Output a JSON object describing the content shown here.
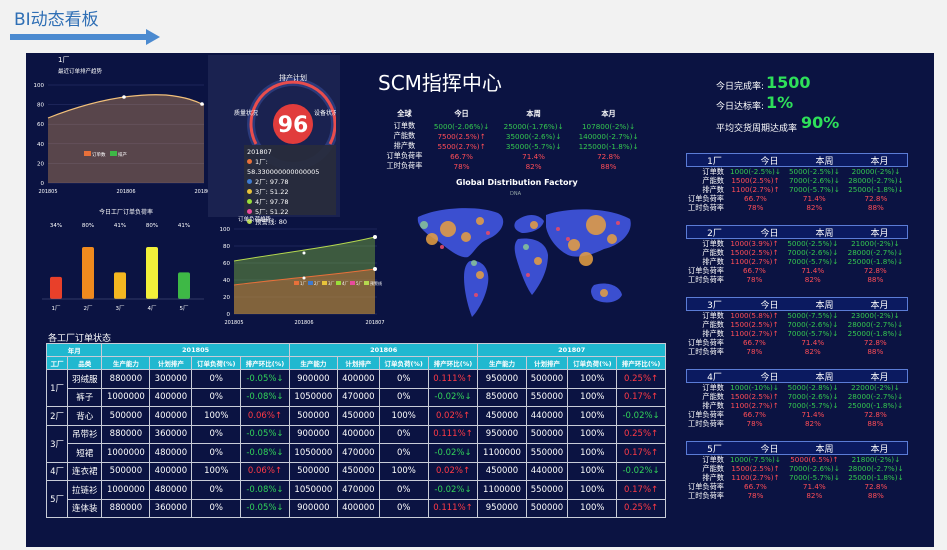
{
  "page": {
    "title": "BI动态看板"
  },
  "center": {
    "title": "SCM指挥中心",
    "map_title": "Global Distribution Factory",
    "map_sub": "DNA"
  },
  "kpi": {
    "done_label": "今日完成率:",
    "done_value": "1500",
    "reach_label": "今日达标率:",
    "reach_value": "1%",
    "avg_label": "平均交货周期达成率",
    "avg_value": "90%"
  },
  "trend": {
    "tag": "1厂",
    "title": "最近订单排产趋势",
    "y_ticks": [
      "100",
      "80",
      "60",
      "40",
      "20",
      "0"
    ],
    "x_ticks": [
      "201805",
      "201806",
      "201807"
    ],
    "legend": [
      "订单数",
      "排产"
    ]
  },
  "gauge": {
    "top": "排产计划",
    "left": "质量状况",
    "right": "设备状况",
    "value": "96",
    "tooltip_title": "201807",
    "tooltip": [
      "1厂: 58.330000000000005",
      "2厂: 97.78",
      "3厂: 51.22",
      "4厂: 97.78",
      "5厂: 51.22",
      "预警线: 80"
    ]
  },
  "bar": {
    "title": "今日工厂订单负荷率",
    "categories": [
      "1厂",
      "2厂",
      "3厂",
      "4厂",
      "5厂"
    ],
    "labels": [
      "34%",
      "80%",
      "41%",
      "80%",
      "41%"
    ],
    "colors": [
      "#e8402a",
      "#f08a1e",
      "#f5b720",
      "#f2f03a",
      "#3eb846"
    ]
  },
  "area": {
    "title": "订单负荷趋势",
    "y_ticks": [
      "100",
      "80",
      "60",
      "40",
      "20",
      "0"
    ],
    "x_ticks": [
      "201805",
      "201806",
      "201807"
    ],
    "legend": [
      "1厂",
      "2厂",
      "3厂",
      "4厂",
      "5厂",
      "预警线"
    ],
    "colors": [
      "#e8703a",
      "#3e7ad0",
      "#e8c33a",
      "#9adf3a",
      "#e94a9c",
      "#b5d84f"
    ]
  },
  "summary": {
    "headers": [
      "全球",
      "今日",
      "本周",
      "本月"
    ],
    "rows": [
      [
        "订单数",
        "5000(-2.06%)↓",
        "25000(-1.76%)↓",
        "107800(-2%)↓"
      ],
      [
        "产能数",
        "7500(2.5%)↑",
        "35000(-2.6%)↓",
        "140000(-2.7%)↓"
      ],
      [
        "排产数",
        "5500(2.7%)↑",
        "35000(-5.7%)↓",
        "125000(-1.8%)↓"
      ],
      [
        "订单负荷率",
        "66.7%",
        "71.4%",
        "72.8%"
      ],
      [
        "工时负荷率",
        "78%",
        "82%",
        "88%"
      ]
    ]
  },
  "factories": [
    {
      "name": "1厂",
      "cols": [
        "今日",
        "本周",
        "本月"
      ],
      "rows": [
        [
          "订单数",
          "1000(-2.5%)↓",
          "5000(-2.5%)↓",
          "20000(-2%)↓"
        ],
        [
          "产能数",
          "1500(2.5%)↑",
          "7000(-2.6%)↓",
          "28000(-2.7%)↓"
        ],
        [
          "排产数",
          "1100(2.7%)↑",
          "7000(-5.7%)↓",
          "25000(-1.8%)↓"
        ],
        [
          "订单负荷率",
          "66.7%",
          "71.4%",
          "72.8%"
        ],
        [
          "工时负荷率",
          "78%",
          "82%",
          "88%"
        ]
      ]
    },
    {
      "name": "2厂",
      "cols": [
        "今日",
        "本周",
        "本月"
      ],
      "rows": [
        [
          "订单数",
          "1000(3.9%)↑",
          "5000(-2.5%)↓",
          "21000(-2%)↓"
        ],
        [
          "产能数",
          "1500(2.5%)↑",
          "7000(-2.6%)↓",
          "28000(-2.7%)↓"
        ],
        [
          "排产数",
          "1100(2.7%)↑",
          "7000(-5.7%)↓",
          "25000(-1.8%)↓"
        ],
        [
          "订单负荷率",
          "66.7%",
          "71.4%",
          "72.8%"
        ],
        [
          "工时负荷率",
          "78%",
          "82%",
          "88%"
        ]
      ]
    },
    {
      "name": "3厂",
      "cols": [
        "今日",
        "本周",
        "本月"
      ],
      "rows": [
        [
          "订单数",
          "1000(5.8%)↑",
          "5000(-7.5%)↓",
          "23000(-2%)↓"
        ],
        [
          "产能数",
          "1500(2.5%)↑",
          "7000(-2.6%)↓",
          "28000(-2.7%)↓"
        ],
        [
          "排产数",
          "1100(2.7%)↑",
          "7000(-5.7%)↓",
          "25000(-1.8%)↓"
        ],
        [
          "订单负荷率",
          "66.7%",
          "71.4%",
          "72.8%"
        ],
        [
          "工时负荷率",
          "78%",
          "82%",
          "88%"
        ]
      ]
    },
    {
      "name": "4厂",
      "cols": [
        "今日",
        "本周",
        "本月"
      ],
      "rows": [
        [
          "订单数",
          "1000(-10%)↓",
          "5000(-2.8%)↓",
          "22000(-2%)↓"
        ],
        [
          "产能数",
          "1500(2.5%)↑",
          "7000(-2.6%)↓",
          "28000(-2.7%)↓"
        ],
        [
          "排产数",
          "1100(2.7%)↑",
          "7000(-5.7%)↓",
          "25000(-1.8%)↓"
        ],
        [
          "订单负荷率",
          "66.7%",
          "71.4%",
          "72.8%"
        ],
        [
          "工时负荷率",
          "78%",
          "82%",
          "88%"
        ]
      ]
    },
    {
      "name": "5厂",
      "cols": [
        "今日",
        "本周",
        "本月"
      ],
      "rows": [
        [
          "订单数",
          "1000(-7.5%)↓",
          "5000(6.5%)↑",
          "21800(-2%)↓"
        ],
        [
          "产能数",
          "1500(2.5%)↑",
          "7000(-2.6%)↓",
          "28000(-2.7%)↓"
        ],
        [
          "排产数",
          "1100(2.7%)↑",
          "7000(-5.7%)↓",
          "25000(-1.8%)↓"
        ],
        [
          "订单负荷率",
          "66.7%",
          "71.4%",
          "72.8%"
        ],
        [
          "工时负荷率",
          "78%",
          "82%",
          "88%"
        ]
      ]
    }
  ],
  "orders": {
    "title": "各工厂订单状态",
    "head1": [
      "年月",
      "201805",
      "201806",
      "201807"
    ],
    "head2": [
      "工厂",
      "品类",
      "生产能力",
      "计划排产",
      "订单负荷(%)",
      "排产环比(%)",
      "生产能力",
      "计划排产",
      "订单负荷(%)",
      "排产环比(%)",
      "生产能力",
      "计划排产",
      "订单负荷(%)",
      "排产环比(%)"
    ],
    "rows": [
      [
        "1厂",
        "羽绒服",
        "880000",
        "300000",
        "0%",
        "-0.05%↓",
        "900000",
        "400000",
        "0%",
        "0.111%↑",
        "950000",
        "500000",
        "100%",
        "0.25%↑"
      ],
      [
        "",
        "裤子",
        "1000000",
        "400000",
        "0%",
        "-0.08%↓",
        "1050000",
        "470000",
        "0%",
        "-0.02%↓",
        "850000",
        "550000",
        "100%",
        "0.17%↑"
      ],
      [
        "2厂",
        "背心",
        "500000",
        "400000",
        "100%",
        "0.06%↑",
        "500000",
        "450000",
        "100%",
        "0.02%↑",
        "450000",
        "440000",
        "100%",
        "-0.02%↓"
      ],
      [
        "3厂",
        "吊带衫",
        "880000",
        "360000",
        "0%",
        "-0.05%↓",
        "900000",
        "400000",
        "0%",
        "0.111%↑",
        "950000",
        "500000",
        "100%",
        "0.25%↑"
      ],
      [
        "",
        "短裙",
        "1000000",
        "480000",
        "0%",
        "-0.08%↓",
        "1050000",
        "470000",
        "0%",
        "-0.02%↓",
        "1100000",
        "550000",
        "100%",
        "0.17%↑"
      ],
      [
        "4厂",
        "连衣裙",
        "500000",
        "400000",
        "100%",
        "0.06%↑",
        "500000",
        "450000",
        "100%",
        "0.02%↑",
        "450000",
        "440000",
        "100%",
        "-0.02%↓"
      ],
      [
        "5厂",
        "拉链衫",
        "1000000",
        "480000",
        "0%",
        "-0.08%↓",
        "1050000",
        "470000",
        "0%",
        "-0.02%↓",
        "1100000",
        "550000",
        "100%",
        "0.17%↑"
      ],
      [
        "",
        "连体装",
        "880000",
        "360000",
        "0%",
        "-0.05%↓",
        "900000",
        "400000",
        "0%",
        "0.111%↑",
        "950000",
        "500000",
        "100%",
        "0.25%↑"
      ]
    ]
  }
}
